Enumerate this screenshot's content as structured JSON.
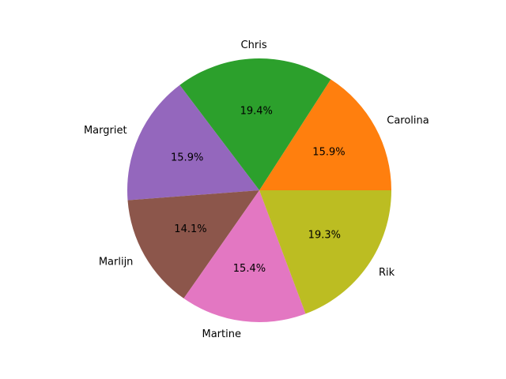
{
  "chart_data": {
    "type": "pie",
    "title": "",
    "start_angle_deg": 0,
    "direction": "counterclockwise",
    "slices": [
      {
        "label": "Carolina",
        "pct": 15.9,
        "pct_text": "15.9%",
        "color": "#ff7f0e"
      },
      {
        "label": "Chris",
        "pct": 19.4,
        "pct_text": "19.4%",
        "color": "#2ca02c"
      },
      {
        "label": "Margriet",
        "pct": 15.9,
        "pct_text": "15.9%",
        "color": "#9467bd"
      },
      {
        "label": "Marlijn",
        "pct": 14.1,
        "pct_text": "14.1%",
        "color": "#8c564b"
      },
      {
        "label": "Martine",
        "pct": 15.4,
        "pct_text": "15.4%",
        "color": "#e377c2"
      },
      {
        "label": "Rik",
        "pct": 19.3,
        "pct_text": "19.3%",
        "color": "#bcbd22"
      }
    ]
  }
}
